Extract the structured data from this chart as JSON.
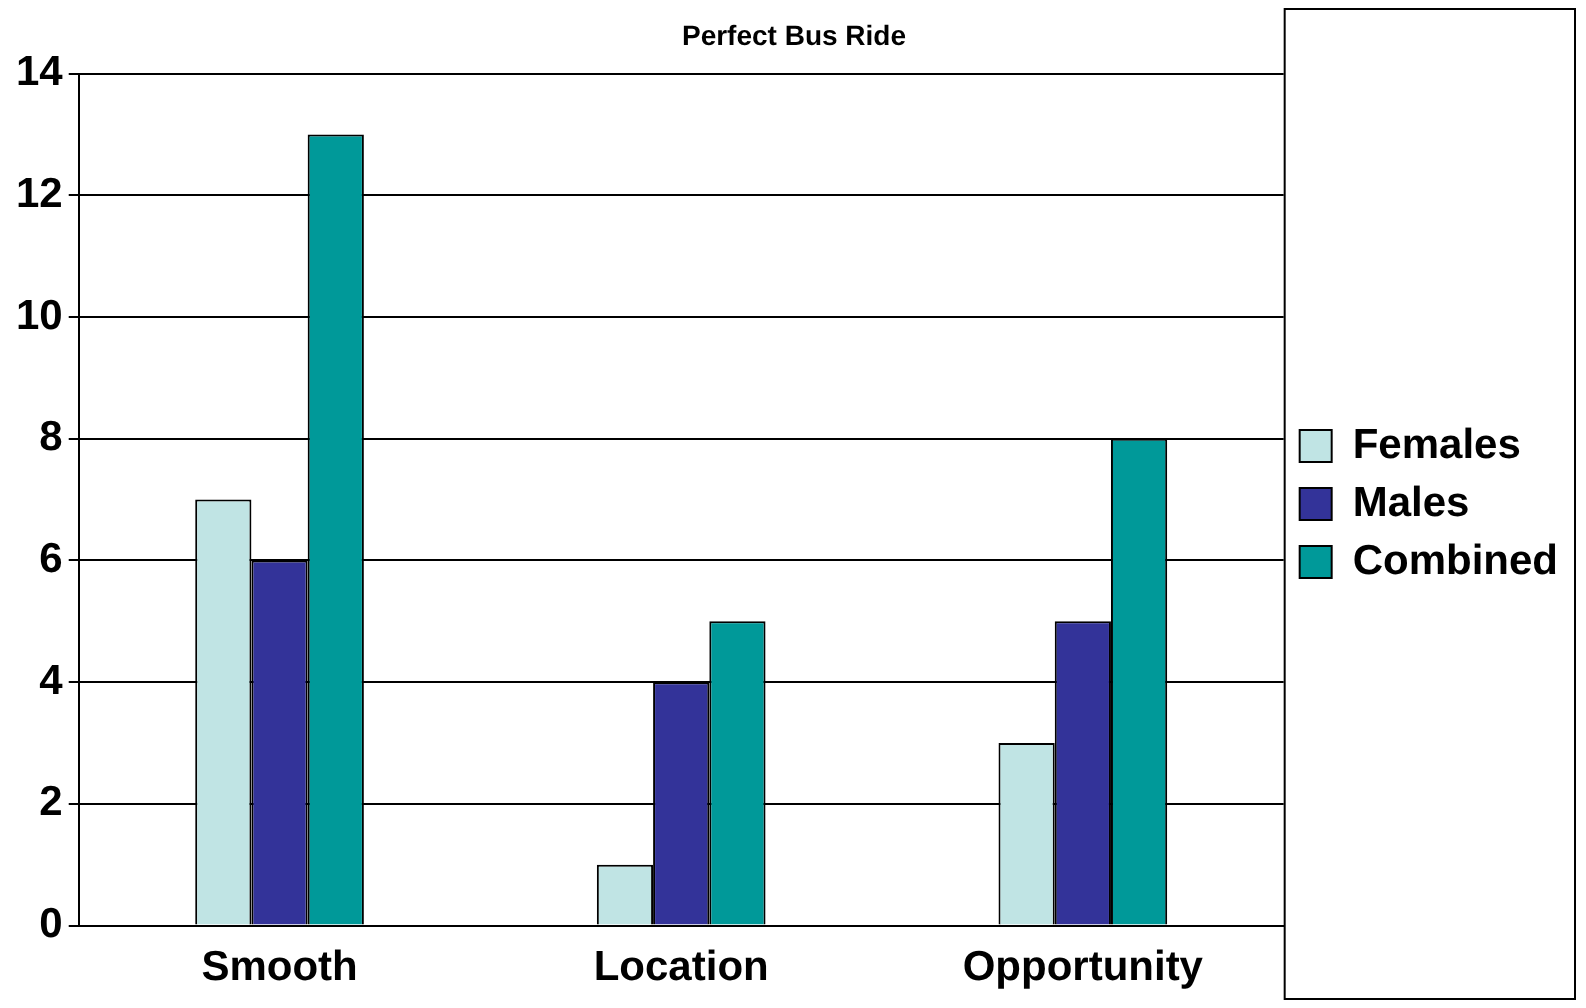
{
  "chart_data": {
    "type": "bar",
    "title": "Perfect Bus Ride",
    "categories": [
      "Smooth",
      "Location",
      "Opportunity"
    ],
    "series": [
      {
        "name": "Females",
        "color": "#c0e4e4",
        "values": [
          7,
          1,
          3
        ]
      },
      {
        "name": "Males",
        "color": "#333399",
        "values": [
          6,
          4,
          5
        ]
      },
      {
        "name": "Combined",
        "color": "#009999",
        "values": [
          13,
          5,
          8
        ]
      }
    ],
    "ylim": [
      0,
      14
    ],
    "yticks": [
      0,
      2,
      4,
      6,
      8,
      10,
      12,
      14
    ],
    "grid": "y",
    "legend": "right"
  }
}
